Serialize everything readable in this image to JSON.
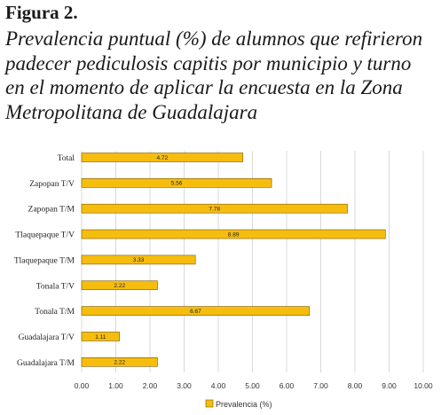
{
  "figure": {
    "label": "Figura 2.",
    "caption_lines": [
      "Prevalencia puntual (%) de alumnos que refirieron",
      "padecer pediculosis capitis por municipio y turno",
      "en el momento de aplicar la encuesta en la Zona",
      "Metropolitana de Guadalajara"
    ]
  },
  "colors": {
    "bar_fill": "#F6BD0F",
    "bar_stroke": "#7a5a00",
    "gridline": "#d9d9d9"
  },
  "chart_data": {
    "type": "bar",
    "orientation": "horizontal",
    "categories": [
      "Total",
      "Zapopan T/V",
      "Zapopan T/M",
      "Tlaquepaque T/V",
      "Tlaquepaque T/M",
      "Tonala T/V",
      "Tonala T/M",
      "Guadalajara T/V",
      "Guadalajara T/M"
    ],
    "series": [
      {
        "name": "Prevalencia (%)",
        "values": [
          4.72,
          5.56,
          7.78,
          8.89,
          3.33,
          2.22,
          6.67,
          1.11,
          2.22
        ]
      }
    ],
    "data_labels": [
      "4.72",
      "5.56",
      "7.78",
      "8.89",
      "3.33",
      "2.22",
      "6.67",
      "1.11",
      "2.22"
    ],
    "xlim": [
      0,
      10
    ],
    "xticks": [
      "0.00",
      "1.00",
      "2.00",
      "3.00",
      "4.00",
      "5.00",
      "6.00",
      "7.00",
      "8.00",
      "9.00",
      "10.00"
    ],
    "legend": {
      "position": "bottom",
      "entries": [
        "Prevalencia (%)"
      ]
    },
    "grid": true
  }
}
